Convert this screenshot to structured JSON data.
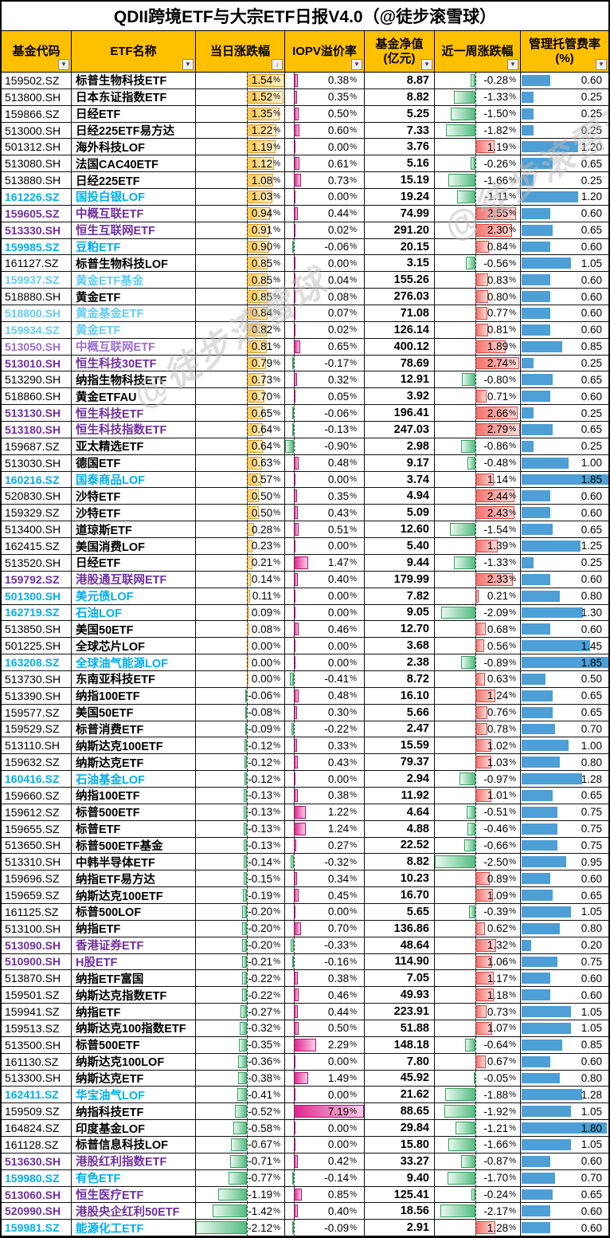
{
  "title": "QDII跨境ETF与大宗ETF日报V4.0（@徒步滚雪球）",
  "watermark": {
    "text": "@徒步滚雪球"
  },
  "colors": {
    "header_bg": "#FFC000",
    "bar_daily_positive": "#FFB82E",
    "bar_negative_green": "#4FBE82",
    "bar_iopv_positive": "#E0218A",
    "bar_weekly_positive": "#F0706C",
    "bar_fee_blue": "#4D9FD6",
    "code_cyan": "#00AEEF",
    "code_cyan_light": "#66CCF5",
    "code_purple": "#7030A0",
    "code_purple_light": "#9B6FD0"
  },
  "columns": [
    {
      "key": "fund-code",
      "label": "基金代码",
      "label2": "",
      "button": "filter"
    },
    {
      "key": "etf-name",
      "label": "ETF名称",
      "label2": "",
      "button": "filter"
    },
    {
      "key": "daily-change",
      "label": "当日涨跌幅",
      "label2": "",
      "button": "sort-filter"
    },
    {
      "key": "iopv-premium",
      "label": "IOPV溢价率",
      "label2": "",
      "button": "filter"
    },
    {
      "key": "fund-nav",
      "label": "基金净值",
      "label2": "(亿元)",
      "button": "filter"
    },
    {
      "key": "weekly-change",
      "label": "近一周涨跌幅",
      "label2": "",
      "button": "filter"
    },
    {
      "key": "fee-rate",
      "label": "管理托管费率",
      "label2": "(%)",
      "button": "filter"
    }
  ],
  "bar_scales": {
    "daily": {
      "min": -2.12,
      "max": 1.54
    },
    "iopv": {
      "min": -0.9,
      "max": 7.19
    },
    "weekly": {
      "min": -2.5,
      "max": 2.79
    },
    "fee": {
      "min": 0,
      "max": 1.85
    }
  },
  "table": {
    "fields": [
      "code",
      "name",
      "style",
      "daily_pct",
      "iopv_pct",
      "nav_100m",
      "weekly_pct",
      "fee_pct"
    ],
    "rows": [
      [
        "159502.SZ",
        "标普生物科技ETF",
        "k",
        1.54,
        0.38,
        8.87,
        -0.28,
        0.6
      ],
      [
        "513800.SH",
        "日本东证指数ETF",
        "k",
        1.52,
        0.35,
        8.82,
        -1.33,
        0.25
      ],
      [
        "159866.SZ",
        "日经ETF",
        "k",
        1.35,
        0.5,
        5.25,
        -1.5,
        0.25
      ],
      [
        "513000.SH",
        "日经225ETF易方达",
        "k",
        1.22,
        0.6,
        7.33,
        -1.82,
        0.25
      ],
      [
        "501312.SH",
        "海外科技LOF",
        "k",
        1.19,
        0.0,
        3.76,
        1.19,
        1.2
      ],
      [
        "513080.SH",
        "法国CAC40ETF",
        "k",
        1.12,
        0.61,
        5.16,
        -0.26,
        0.65
      ],
      [
        "513880.SH",
        "日经225ETF",
        "k",
        1.08,
        0.73,
        15.19,
        -1.66,
        0.25
      ],
      [
        "161226.SZ",
        "国投白银LOF",
        "cb",
        1.03,
        0.0,
        19.24,
        -1.11,
        1.2
      ],
      [
        "159605.SZ",
        "中概互联ETF",
        "pb",
        0.94,
        0.44,
        74.99,
        2.55,
        0.6
      ],
      [
        "513330.SH",
        "恒生互联网ETF",
        "pb",
        0.91,
        0.02,
        291.2,
        2.3,
        0.65
      ],
      [
        "159985.SZ",
        "豆粕ETF",
        "cb",
        0.9,
        -0.06,
        20.15,
        0.84,
        0.6
      ],
      [
        "161127.SZ",
        "标普生物科技LOF",
        "k",
        0.85,
        0.0,
        3.15,
        -0.56,
        1.05
      ],
      [
        "159937.SZ",
        "黄金ETF基金",
        "cl",
        0.85,
        0.04,
        155.26,
        0.83,
        0.6
      ],
      [
        "518880.SH",
        "黄金ETF",
        "k",
        0.85,
        0.08,
        276.03,
        0.8,
        0.6
      ],
      [
        "518800.SH",
        "黄金基金ETF",
        "cl",
        0.84,
        0.07,
        71.08,
        0.77,
        0.6
      ],
      [
        "159934.SZ",
        "黄金ETF",
        "cl",
        0.82,
        0.02,
        126.14,
        0.81,
        0.6
      ],
      [
        "513050.SH",
        "中概互联网ETF",
        "pl",
        0.81,
        0.65,
        400.12,
        1.89,
        0.85
      ],
      [
        "513010.SH",
        "恒生科技30ETF",
        "pb",
        0.79,
        -0.17,
        78.69,
        2.74,
        0.25
      ],
      [
        "513290.SH",
        "纳指生物科技ETF",
        "k",
        0.73,
        0.32,
        12.91,
        -0.8,
        0.65
      ],
      [
        "518860.SH",
        "黄金ETFAU",
        "k",
        0.7,
        0.05,
        3.92,
        0.71,
        0.6
      ],
      [
        "513130.SH",
        "恒生科技ETF",
        "pb",
        0.65,
        -0.06,
        196.41,
        2.66,
        0.25
      ],
      [
        "513180.SH",
        "恒生科技指数ETF",
        "pb",
        0.64,
        -0.13,
        247.03,
        2.79,
        0.65
      ],
      [
        "159687.SZ",
        "亚太精选ETF",
        "k",
        0.64,
        -0.9,
        2.98,
        -0.86,
        0.25
      ],
      [
        "513030.SH",
        "德国ETF",
        "k",
        0.63,
        0.48,
        9.17,
        -0.48,
        1.0
      ],
      [
        "160216.SZ",
        "国泰商品LOF",
        "cb",
        0.57,
        0.0,
        3.74,
        1.14,
        1.85
      ],
      [
        "520830.SH",
        "沙特ETF",
        "k",
        0.5,
        0.35,
        4.94,
        2.44,
        0.6
      ],
      [
        "159329.SZ",
        "沙特ETF",
        "k",
        0.5,
        0.43,
        5.09,
        2.43,
        0.6
      ],
      [
        "513400.SH",
        "道琼斯ETF",
        "k",
        0.28,
        0.51,
        12.6,
        -1.54,
        0.65
      ],
      [
        "162415.SZ",
        "美国消费LOF",
        "k",
        0.23,
        0.0,
        5.4,
        1.39,
        1.25
      ],
      [
        "513520.SH",
        "日经ETF",
        "k",
        0.21,
        1.47,
        9.44,
        -1.33,
        0.25
      ],
      [
        "159792.SZ",
        "港股通互联网ETF",
        "pb",
        0.14,
        0.4,
        179.99,
        2.33,
        0.6
      ],
      [
        "501300.SH",
        "美元债LOF",
        "cb",
        0.11,
        0.0,
        7.82,
        0.21,
        0.8
      ],
      [
        "162719.SZ",
        "石油LOF",
        "cb",
        0.09,
        0.0,
        9.05,
        -2.09,
        1.3
      ],
      [
        "513850.SH",
        "美国50ETF",
        "k",
        0.08,
        0.46,
        12.7,
        0.68,
        0.6
      ],
      [
        "501225.SH",
        "全球芯片LOF",
        "k",
        0.0,
        0.0,
        3.68,
        0.56,
        1.45
      ],
      [
        "163208.SZ",
        "全球油气能源LOF",
        "cb",
        0.0,
        0.0,
        2.38,
        -0.89,
        1.85
      ],
      [
        "513730.SH",
        "东南亚科技ETF",
        "k",
        0.0,
        -0.41,
        8.72,
        0.63,
        0.5
      ],
      [
        "513390.SH",
        "纳指100ETF",
        "k",
        -0.06,
        0.48,
        16.1,
        1.24,
        0.65
      ],
      [
        "159577.SZ",
        "美国50ETF",
        "k",
        -0.08,
        0.3,
        5.66,
        0.76,
        0.65
      ],
      [
        "159529.SZ",
        "标普消费ETF",
        "k",
        -0.09,
        -0.22,
        2.47,
        0.78,
        0.7
      ],
      [
        "513110.SH",
        "纳斯达克100ETF",
        "k",
        -0.12,
        0.33,
        15.59,
        1.02,
        1.0
      ],
      [
        "159632.SZ",
        "纳斯达克ETF",
        "k",
        -0.12,
        0.43,
        79.37,
        1.03,
        0.8
      ],
      [
        "160416.SZ",
        "石油基金LOF",
        "cb",
        -0.12,
        0.0,
        2.94,
        -0.97,
        1.28
      ],
      [
        "159660.SZ",
        "纳指100ETF",
        "k",
        -0.13,
        0.38,
        11.92,
        1.01,
        0.65
      ],
      [
        "159612.SZ",
        "标普500ETF",
        "k",
        -0.13,
        1.22,
        4.64,
        -0.51,
        0.75
      ],
      [
        "159655.SZ",
        "标普ETF",
        "k",
        -0.13,
        1.24,
        4.88,
        -0.46,
        0.75
      ],
      [
        "513650.SH",
        "标普500ETF基金",
        "k",
        -0.13,
        0.27,
        22.52,
        -0.66,
        0.75
      ],
      [
        "513310.SH",
        "中韩半导体ETF",
        "k",
        -0.14,
        -0.32,
        8.82,
        -2.5,
        0.95
      ],
      [
        "159696.SZ",
        "纳指ETF易方达",
        "k",
        -0.15,
        0.34,
        10.23,
        0.89,
        0.6
      ],
      [
        "159659.SZ",
        "纳斯达克100ETF",
        "k",
        -0.19,
        0.45,
        16.7,
        1.09,
        0.65
      ],
      [
        "161125.SZ",
        "标普500LOF",
        "k",
        -0.2,
        0.0,
        5.65,
        -0.39,
        1.05
      ],
      [
        "513100.SH",
        "纳指ETF",
        "k",
        -0.2,
        0.7,
        136.86,
        0.62,
        0.8
      ],
      [
        "513090.SH",
        "香港证券ETF",
        "pb",
        -0.2,
        -0.33,
        48.64,
        1.32,
        0.2
      ],
      [
        "510900.SH",
        "H股ETF",
        "pb",
        -0.21,
        -0.16,
        114.9,
        1.06,
        0.75
      ],
      [
        "513870.SH",
        "纳指ETF富国",
        "k",
        -0.22,
        0.38,
        7.05,
        1.17,
        0.6
      ],
      [
        "159501.SZ",
        "纳斯达克指数ETF",
        "k",
        -0.22,
        0.46,
        49.93,
        1.18,
        0.6
      ],
      [
        "159941.SZ",
        "纳指ETF",
        "k",
        -0.27,
        0.44,
        223.91,
        0.73,
        1.05
      ],
      [
        "159513.SZ",
        "纳斯达克100指数ETF",
        "k",
        -0.32,
        0.5,
        51.88,
        1.07,
        1.05
      ],
      [
        "513500.SH",
        "标普500ETF",
        "k",
        -0.35,
        2.29,
        148.18,
        -0.64,
        0.85
      ],
      [
        "161130.SZ",
        "纳斯达克100LOF",
        "k",
        -0.36,
        0.0,
        7.8,
        0.67,
        0.6
      ],
      [
        "513300.SH",
        "纳斯达克ETF",
        "k",
        -0.38,
        1.49,
        45.92,
        -0.05,
        0.8
      ],
      [
        "162411.SZ",
        "华宝油气LOF",
        "cb",
        -0.41,
        0.0,
        21.62,
        -1.88,
        1.28
      ],
      [
        "159509.SZ",
        "纳指科技ETF",
        "k",
        -0.52,
        7.19,
        88.65,
        -1.92,
        1.05
      ],
      [
        "164824.SZ",
        "印度基金LOF",
        "k",
        -0.58,
        0.0,
        29.84,
        -1.21,
        1.8
      ],
      [
        "161128.SZ",
        "标普信息科技LOF",
        "k",
        -0.67,
        0.0,
        15.8,
        -1.66,
        1.05
      ],
      [
        "513630.SH",
        "港股红利指数ETF",
        "pb",
        -0.71,
        0.42,
        33.27,
        -0.87,
        0.6
      ],
      [
        "159980.SZ",
        "有色ETF",
        "cb",
        -0.77,
        -0.14,
        9.4,
        -1.7,
        0.7
      ],
      [
        "513060.SH",
        "恒生医疗ETF",
        "pb",
        -1.19,
        0.85,
        125.41,
        -0.24,
        0.65
      ],
      [
        "520990.SH",
        "港股央企红利50ETF",
        "pb",
        -1.42,
        0.4,
        18.56,
        -2.17,
        0.6
      ],
      [
        "159981.SZ",
        "能源化工ETF",
        "cb",
        -2.12,
        -0.09,
        2.91,
        1.28,
        0.6
      ]
    ]
  }
}
